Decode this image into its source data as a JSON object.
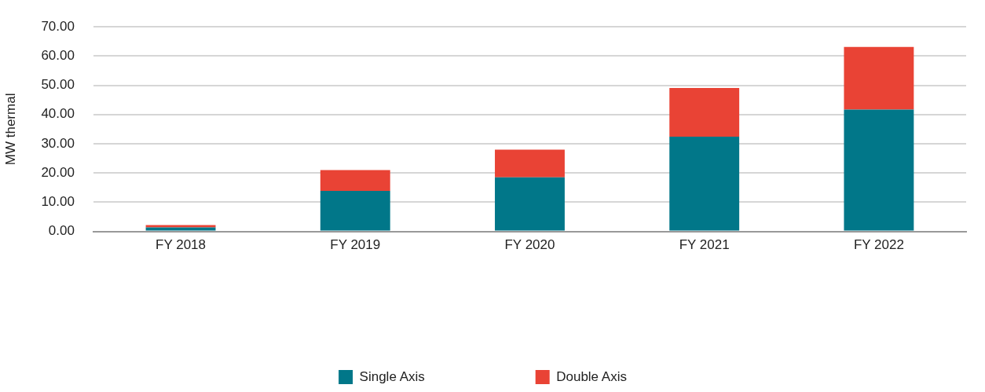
{
  "chart_data": {
    "type": "bar",
    "ylabel": "MW thermal",
    "categories": [
      "FY 2018",
      "FY 2019",
      "FY 2020",
      "FY 2021",
      "FY 2022"
    ],
    "stacked": true,
    "series": [
      {
        "name": "Single Axis",
        "color": "#017789",
        "values": [
          1.4,
          13.9,
          18.5,
          32.4,
          41.7
        ]
      },
      {
        "name": "Double Axis",
        "color": "#e94335",
        "values": [
          0.8,
          7.1,
          9.5,
          16.7,
          21.4
        ]
      }
    ],
    "ylim": [
      0,
      70
    ],
    "yticks": [
      {
        "value": 0,
        "label": "0.00"
      },
      {
        "value": 10,
        "label": "10.00"
      },
      {
        "value": 20,
        "label": "20.00"
      },
      {
        "value": 30,
        "label": "30.00"
      },
      {
        "value": 40,
        "label": "40.00"
      },
      {
        "value": 50,
        "label": "50.00"
      },
      {
        "value": 60,
        "label": "60.00"
      },
      {
        "value": 70,
        "label": "70.00"
      }
    ],
    "grid": "y",
    "legend": "bottom"
  }
}
